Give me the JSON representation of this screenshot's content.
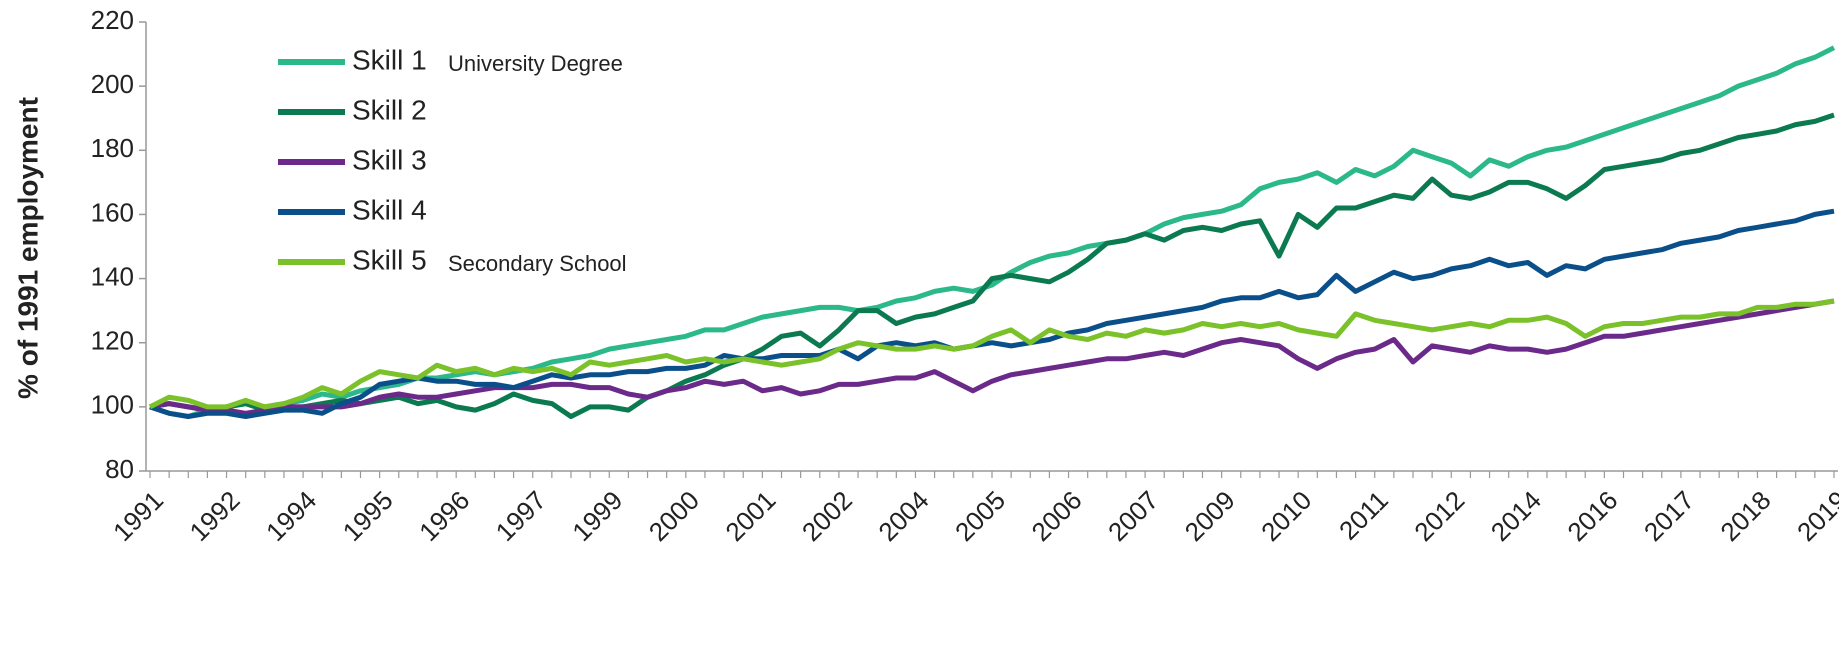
{
  "chart_data": {
    "type": "line",
    "ylabel": "% of 1991 employment",
    "annotations": [
      "University Degree",
      "Secondary School"
    ],
    "categories": [
      "1991",
      null,
      null,
      null,
      "1992",
      null,
      null,
      null,
      "1994",
      null,
      null,
      null,
      "1995",
      null,
      null,
      null,
      "1996",
      null,
      null,
      null,
      "1997",
      null,
      null,
      null,
      "1999",
      null,
      null,
      null,
      "2000",
      null,
      null,
      null,
      "2001",
      null,
      null,
      null,
      "2002",
      null,
      null,
      null,
      "2004",
      null,
      null,
      null,
      "2005",
      null,
      null,
      null,
      "2006",
      null,
      null,
      null,
      "2007",
      null,
      null,
      null,
      "2009",
      null,
      null,
      null,
      "2010",
      null,
      null,
      null,
      "2011",
      null,
      null,
      null,
      "2012",
      null,
      null,
      null,
      "2014",
      null,
      null,
      null,
      "2016",
      null,
      null,
      null,
      "2017",
      null,
      null,
      null,
      "2018",
      null,
      null,
      null,
      "2019"
    ],
    "ylim": [
      80,
      220
    ],
    "yticks": [
      80,
      100,
      120,
      140,
      160,
      180,
      200,
      220
    ],
    "grid": false,
    "legend": "upper left",
    "series": [
      {
        "name": "Skill 1",
        "color": "#2bb88a",
        "values": [
          100,
          98,
          97,
          99,
          100,
          101,
          100,
          101,
          102,
          104,
          103,
          105,
          106,
          107,
          109,
          109,
          110,
          111,
          110,
          111,
          112,
          114,
          115,
          116,
          118,
          119,
          120,
          121,
          122,
          124,
          124,
          126,
          128,
          129,
          130,
          131,
          131,
          130,
          131,
          133,
          134,
          136,
          137,
          136,
          138,
          142,
          145,
          147,
          148,
          150,
          151,
          152,
          154,
          157,
          159,
          160,
          161,
          163,
          168,
          170,
          171,
          173,
          170,
          174,
          172,
          175,
          180,
          178,
          176,
          172,
          177,
          175,
          178,
          180,
          181,
          183,
          185,
          187,
          189,
          191,
          193,
          195,
          197,
          200,
          202,
          204,
          207,
          209,
          212
        ]
      },
      {
        "name": "Skill 2",
        "color": "#0b7a50",
        "values": [
          100,
          101,
          100,
          99,
          100,
          101,
          99,
          100,
          100,
          101,
          102,
          101,
          102,
          103,
          101,
          102,
          100,
          99,
          101,
          104,
          102,
          101,
          97,
          100,
          100,
          99,
          103,
          105,
          108,
          110,
          113,
          115,
          118,
          122,
          123,
          119,
          124,
          130,
          130,
          126,
          128,
          129,
          131,
          133,
          140,
          141,
          140,
          139,
          142,
          146,
          151,
          152,
          154,
          152,
          155,
          156,
          155,
          157,
          158,
          147,
          160,
          156,
          162,
          162,
          164,
          166,
          165,
          171,
          166,
          165,
          167,
          170,
          170,
          168,
          165,
          169,
          174,
          175,
          176,
          177,
          179,
          180,
          182,
          184,
          185,
          186,
          188,
          189,
          191
        ]
      },
      {
        "name": "Skill 3",
        "color": "#6b2a8a",
        "values": [
          100,
          101,
          100,
          99,
          99,
          98,
          99,
          100,
          100,
          100,
          100,
          101,
          103,
          104,
          103,
          103,
          104,
          105,
          106,
          106,
          106,
          107,
          107,
          106,
          106,
          104,
          103,
          105,
          106,
          108,
          107,
          108,
          105,
          106,
          104,
          105,
          107,
          107,
          108,
          109,
          109,
          111,
          108,
          105,
          108,
          110,
          111,
          112,
          113,
          114,
          115,
          115,
          116,
          117,
          116,
          118,
          120,
          121,
          120,
          119,
          115,
          112,
          115,
          117,
          118,
          121,
          114,
          119,
          118,
          117,
          119,
          118,
          118,
          117,
          118,
          120,
          122,
          122,
          123,
          124,
          125,
          126,
          127,
          128,
          129,
          130,
          131,
          132,
          133
        ]
      },
      {
        "name": "Skill 4",
        "color": "#0b4f8a",
        "values": [
          100,
          98,
          97,
          98,
          98,
          97,
          98,
          99,
          99,
          98,
          101,
          103,
          107,
          108,
          109,
          108,
          108,
          107,
          107,
          106,
          108,
          110,
          109,
          110,
          110,
          111,
          111,
          112,
          112,
          113,
          116,
          115,
          115,
          116,
          116,
          116,
          118,
          115,
          119,
          120,
          119,
          120,
          118,
          119,
          120,
          119,
          120,
          121,
          123,
          124,
          126,
          127,
          128,
          129,
          130,
          131,
          133,
          134,
          134,
          136,
          134,
          135,
          141,
          136,
          139,
          142,
          140,
          141,
          143,
          144,
          146,
          144,
          145,
          141,
          144,
          143,
          146,
          147,
          148,
          149,
          151,
          152,
          153,
          155,
          156,
          157,
          158,
          160,
          161
        ]
      },
      {
        "name": "Skill 5",
        "color": "#7ac12a",
        "values": [
          100,
          103,
          102,
          100,
          100,
          102,
          100,
          101,
          103,
          106,
          104,
          108,
          111,
          110,
          109,
          113,
          111,
          112,
          110,
          112,
          111,
          112,
          110,
          114,
          113,
          114,
          115,
          116,
          114,
          115,
          114,
          115,
          114,
          113,
          114,
          115,
          118,
          120,
          119,
          118,
          118,
          119,
          118,
          119,
          122,
          124,
          120,
          124,
          122,
          121,
          123,
          122,
          124,
          123,
          124,
          126,
          125,
          126,
          125,
          126,
          124,
          123,
          122,
          129,
          127,
          126,
          125,
          124,
          125,
          126,
          125,
          127,
          127,
          128,
          126,
          122,
          125,
          126,
          126,
          127,
          128,
          128,
          129,
          129,
          131,
          131,
          132,
          132,
          133
        ]
      }
    ]
  }
}
